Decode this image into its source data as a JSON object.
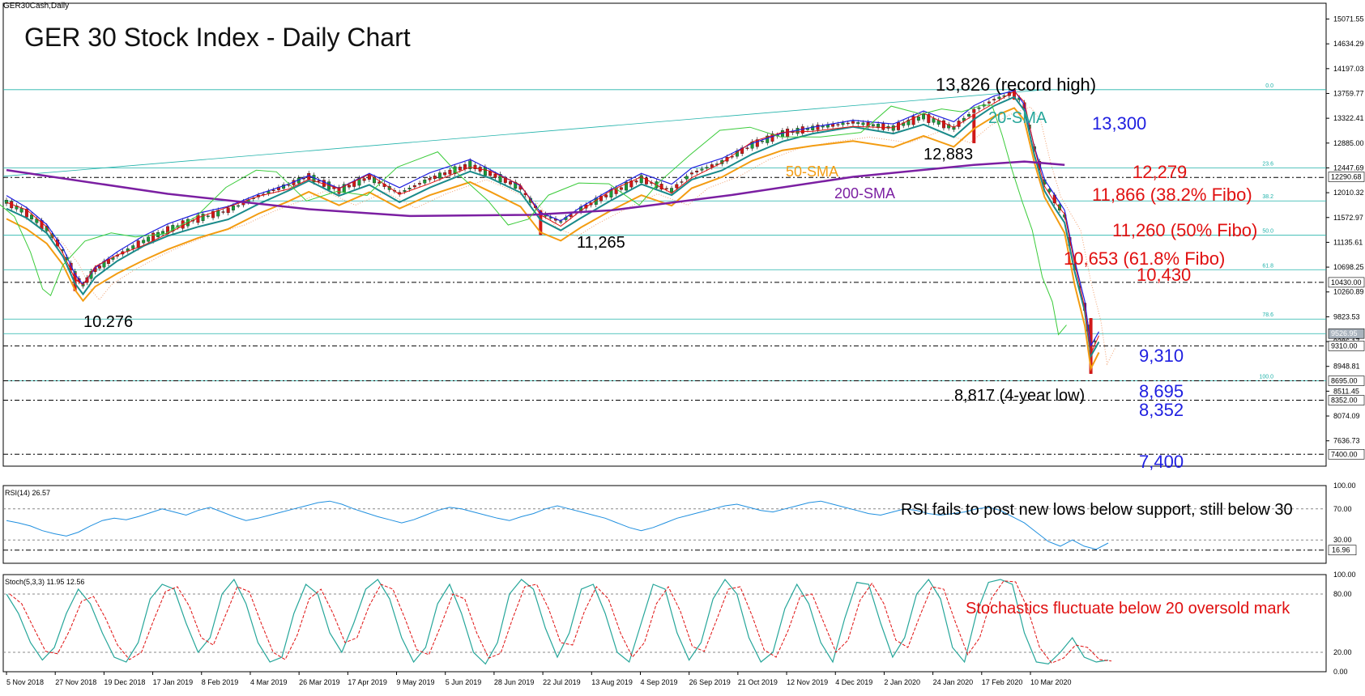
{
  "header": {
    "symbol": "GER30Cash,Daily",
    "title": "GER 30 Stock Index - Daily Chart"
  },
  "chart_data": {
    "type": "candlestick",
    "title": "GER 30 Stock Index - Daily Chart",
    "price_axis": {
      "ylim": [
        7190,
        15350
      ],
      "ticks": [
        "15071.55",
        "14634.29",
        "14197.03",
        "13759.77",
        "13322.41",
        "12885.00",
        "12447.69",
        "12010.32",
        "11572.97",
        "11135.61",
        "10698.25",
        "10260.89",
        "9823.53",
        "9386.17",
        "8948.81",
        "8511.45",
        "8074.09",
        "7636.73"
      ]
    },
    "x_axis": {
      "labels": [
        "5 Nov 2018",
        "27 Nov 2018",
        "19 Dec 2018",
        "17 Jan 2019",
        "8 Feb 2019",
        "4 Mar 2019",
        "26 Mar 2019",
        "17 Apr 2019",
        "9 May 2019",
        "5 Jun 2019",
        "28 Jun 2019",
        "22 Jul 2019",
        "13 Aug 2019",
        "4 Sep 2019",
        "26 Sep 2019",
        "21 Oct 2019",
        "12 Nov 2019",
        "4 Dec 2019",
        "2 Jan 2020",
        "24 Jan 2020",
        "17 Feb 2020",
        "10 Mar 2020"
      ]
    },
    "close_path": [
      [
        0,
        11850
      ],
      [
        10,
        11650
      ],
      [
        20,
        11380
      ],
      [
        28,
        11000
      ],
      [
        34,
        10560
      ],
      [
        38,
        10380
      ],
      [
        44,
        10650
      ],
      [
        55,
        10900
      ],
      [
        68,
        11150
      ],
      [
        80,
        11350
      ],
      [
        95,
        11550
      ],
      [
        110,
        11700
      ],
      [
        125,
        11950
      ],
      [
        140,
        12150
      ],
      [
        150,
        12300
      ],
      [
        165,
        12050
      ],
      [
        180,
        12280
      ],
      [
        195,
        12000
      ],
      [
        210,
        12250
      ],
      [
        230,
        12500
      ],
      [
        240,
        12350
      ],
      [
        255,
        12100
      ],
      [
        265,
        11650
      ],
      [
        275,
        11500
      ],
      [
        285,
        11720
      ],
      [
        300,
        12000
      ],
      [
        315,
        12250
      ],
      [
        330,
        12050
      ],
      [
        340,
        12350
      ],
      [
        355,
        12550
      ],
      [
        370,
        12850
      ],
      [
        385,
        13050
      ],
      [
        400,
        13150
      ],
      [
        420,
        13250
      ],
      [
        440,
        13150
      ],
      [
        455,
        13350
      ],
      [
        470,
        13150
      ],
      [
        480,
        13450
      ],
      [
        490,
        13650
      ],
      [
        500,
        13780
      ],
      [
        505,
        13550
      ],
      [
        510,
        12800
      ],
      [
        515,
        12200
      ],
      [
        520,
        11900
      ],
      [
        525,
        11600
      ],
      [
        530,
        10700
      ],
      [
        535,
        10000
      ],
      [
        538,
        9250
      ],
      [
        542,
        9530
      ]
    ],
    "candle_lows_highs": [
      [
        34,
        10276,
        10600
      ],
      [
        265,
        11265,
        11700
      ],
      [
        480,
        12883,
        13400
      ],
      [
        500,
        13650,
        13826
      ],
      [
        538,
        8817,
        9800
      ]
    ],
    "horizontal_levels": {
      "fibo_solid": [
        13826,
        12449,
        11866,
        11260,
        10653,
        9783,
        9526,
        8695
      ],
      "fibo_labels": [
        "0.0",
        "23.6",
        "38.2",
        "50.0",
        "61.8",
        "78.6",
        "",
        "100.0"
      ],
      "dashed_support": [
        12279,
        10430,
        9310,
        8695,
        8352,
        7400
      ]
    },
    "price_tags": [
      "12290.68",
      "10430.00",
      "9526.95",
      "9310.00",
      "8695.00",
      "8352.00",
      "7400.00"
    ],
    "annotations": [
      {
        "text": "13,826 (record high)",
        "color": "#000000"
      },
      {
        "text": "12,883",
        "color": "#000000"
      },
      {
        "text": "11,265",
        "color": "#000000"
      },
      {
        "text": "10.276",
        "color": "#000000"
      },
      {
        "text": "8,817 (4-year low)",
        "color": "#000000"
      },
      {
        "text": "13,300",
        "color": "#1f1fe0"
      },
      {
        "text": "12,279",
        "color": "#e01010"
      },
      {
        "text": "11,866 (38.2% Fibo)",
        "color": "#e01010"
      },
      {
        "text": "11,260 (50% Fibo)",
        "color": "#e01010"
      },
      {
        "text": "10,653 (61.8% Fibo)",
        "color": "#e01010"
      },
      {
        "text": "10,430",
        "color": "#e01010"
      },
      {
        "text": "9,310",
        "color": "#1f1fe0"
      },
      {
        "text": "8,695",
        "color": "#1f1fe0"
      },
      {
        "text": "8,352",
        "color": "#1f1fe0"
      },
      {
        "text": "7,400",
        "color": "#1f1fe0"
      },
      {
        "text": "20-SMA",
        "color": "#26a69a"
      },
      {
        "text": "50-SMA",
        "color": "#f39c12"
      },
      {
        "text": "200-SMA",
        "color": "#7b1fa2"
      }
    ],
    "ma_series": [
      {
        "name": "20-SMA",
        "color": "#1a8a8a"
      },
      {
        "name": "50-SMA",
        "color": "#f39c12"
      },
      {
        "name": "200-SMA",
        "color": "#7b1fa2"
      }
    ],
    "rsi": {
      "header": "RSI(14) 26.57",
      "ylim": [
        0,
        100
      ],
      "ticks": [
        "100.00",
        "70.00",
        "30.00"
      ],
      "level_tag": "16.96",
      "note": "RSI fails to post new lows below support, still below 30",
      "values": [
        55,
        52,
        48,
        42,
        38,
        35,
        40,
        48,
        55,
        58,
        56,
        60,
        65,
        70,
        66,
        62,
        68,
        72,
        66,
        60,
        55,
        58,
        62,
        66,
        70,
        74,
        78,
        80,
        76,
        70,
        65,
        60,
        56,
        52,
        56,
        62,
        68,
        72,
        70,
        66,
        62,
        58,
        55,
        60,
        64,
        70,
        74,
        70,
        66,
        62,
        58,
        52,
        46,
        42,
        46,
        52,
        58,
        62,
        66,
        70,
        74,
        76,
        72,
        68,
        66,
        70,
        74,
        78,
        80,
        76,
        72,
        68,
        64,
        62,
        66,
        70,
        68,
        64,
        62,
        64,
        66,
        70,
        72,
        68,
        60,
        52,
        40,
        28,
        22,
        30,
        22,
        18,
        26
      ]
    },
    "stochastic": {
      "header": "Stoch(5,3,3) 11.95 12.56",
      "ylim": [
        0,
        100
      ],
      "ticks": [
        "100.00",
        "80.00",
        "20.00",
        "0.00"
      ],
      "note": "Stochastics fluctuate below 20 oversold mark",
      "values": [
        80,
        60,
        30,
        12,
        25,
        60,
        85,
        70,
        40,
        15,
        10,
        30,
        75,
        90,
        85,
        50,
        20,
        35,
        80,
        95,
        70,
        30,
        10,
        15,
        60,
        90,
        80,
        40,
        20,
        50,
        85,
        95,
        75,
        35,
        10,
        25,
        70,
        90,
        60,
        20,
        8,
        30,
        80,
        95,
        85,
        45,
        15,
        40,
        85,
        90,
        60,
        20,
        10,
        50,
        90,
        85,
        40,
        12,
        30,
        75,
        95,
        80,
        35,
        10,
        20,
        65,
        90,
        70,
        30,
        10,
        55,
        92,
        90,
        50,
        15,
        35,
        80,
        95,
        75,
        25,
        10,
        60,
        92,
        95,
        90,
        40,
        10,
        8,
        20,
        35,
        15,
        10,
        12
      ]
    }
  }
}
